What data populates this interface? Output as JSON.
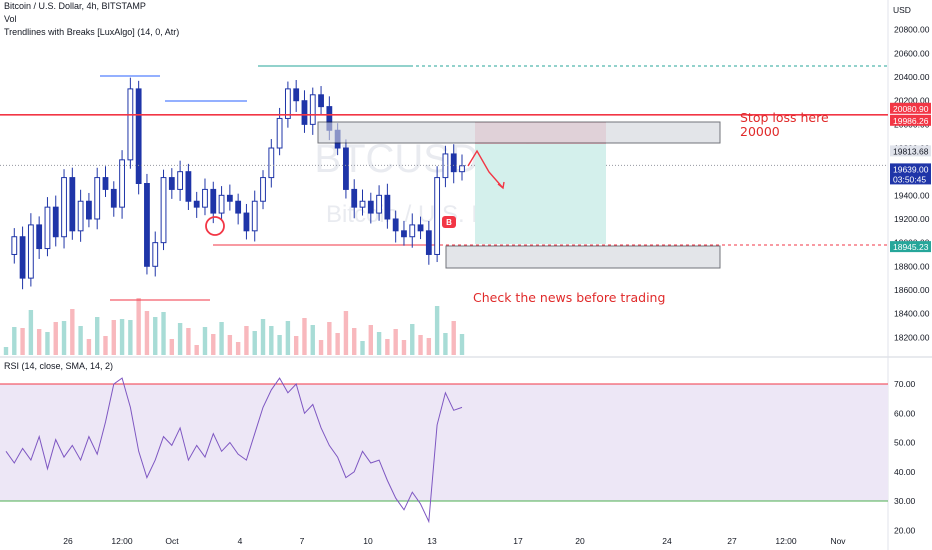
{
  "header": {
    "title": "Bitcoin / U.S. Dollar, 4h, BITSTAMP",
    "vol_label": "Vol",
    "indicator_label": "Trendlines with Breaks [LuxAlgo] (14, 0, Atr)"
  },
  "watermark": {
    "symbol": "BTCUSD, 4h",
    "name": "Bitcoin / U.S. Dollar"
  },
  "annotations": {
    "stop_loss_line1": "Stop loss here",
    "stop_loss_line2": "20000",
    "news_note": "Check the news before trading"
  },
  "rsi_header": "RSI (14, close, SMA, 14, 2)",
  "colors": {
    "up": "#26a69a",
    "down": "#1f3a9e",
    "candle": "#1f35a8",
    "red_line": "#f23645",
    "rsi_line": "#7e57c2",
    "rsi_band": "#ede7f6",
    "trend_line": "#2962ff",
    "annotation": "#e02a2a"
  },
  "chart_data": [
    {
      "type": "line",
      "title": "Bitcoin / U.S. Dollar, 4h, BITSTAMP",
      "currency": "USD",
      "ylim": [
        18050,
        20950
      ],
      "y_ticks": [
        18200,
        18400,
        18600,
        18800,
        19000,
        19200,
        19400,
        19600,
        19800,
        20000,
        20200,
        20400,
        20600,
        20800
      ],
      "x_ticks": [
        "26",
        "12:00",
        "Oct",
        "4",
        "7",
        "10",
        "13",
        "17",
        "20",
        "24",
        "27",
        "12:00",
        "Nov"
      ],
      "series": [
        {
          "name": "close",
          "values": [
            18900,
            19050,
            18700,
            19150,
            18950,
            19300,
            19050,
            19550,
            19100,
            19350,
            19200,
            19550,
            19450,
            19300,
            19700,
            20300,
            19500,
            18800,
            19000,
            19550,
            19450,
            19600,
            19350,
            19300,
            19450,
            19250,
            19400,
            19350,
            19250,
            19100,
            19350,
            19550,
            19800,
            20050,
            20300,
            20200,
            20000,
            20250,
            20150,
            19950,
            19800,
            19450,
            19300,
            19350,
            19250,
            19400,
            19200,
            19100,
            19050,
            19150,
            19100,
            18900,
            19550,
            19750,
            19600,
            19650
          ]
        }
      ],
      "price_labels": [
        "20080.90",
        "19986.26",
        "19813.68",
        "19639.00",
        "03:50:45",
        "18945.23"
      ],
      "stop_loss_level": 20080.9,
      "entry_level": 19813.68,
      "target_level": 18945.23
    },
    {
      "type": "line",
      "title": "RSI (14, close, SMA, 14, 2)",
      "ylim": [
        20,
        75
      ],
      "y_ticks": [
        20.0,
        30.0,
        40.0,
        50.0,
        60.0,
        70.0
      ],
      "y_tick_labels": [
        "20.00",
        "30.00",
        "40.00",
        "50.00",
        "60.00",
        "70.00"
      ],
      "upper_band": 70,
      "lower_band": 30,
      "series": [
        {
          "name": "RSI",
          "values": [
            47,
            43,
            48,
            44,
            52,
            41,
            51,
            45,
            49,
            44,
            52,
            46,
            57,
            70,
            72,
            62,
            47,
            38,
            44,
            52,
            49,
            55,
            44,
            49,
            45,
            53,
            47,
            50,
            46,
            44,
            53,
            62,
            68,
            72,
            67,
            70,
            60,
            63,
            55,
            49,
            45,
            38,
            40,
            47,
            43,
            44,
            37,
            31,
            27,
            33,
            29,
            23,
            56,
            67,
            61,
            62
          ]
        }
      ]
    }
  ]
}
